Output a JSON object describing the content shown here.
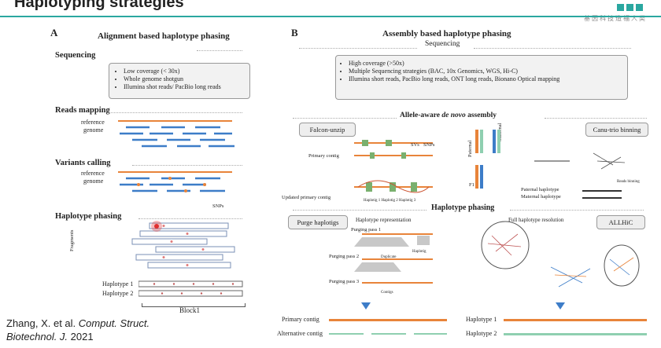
{
  "slide": {
    "title": "Haplotyping strategies",
    "logo_cn": "基因科技造福人类"
  },
  "panel_a": {
    "letter": "A",
    "title": "Alignment based haplotype phasing",
    "sequencing": {
      "label": "Sequencing",
      "bullets": [
        "Low coverage (< 30x)",
        "Whole genome shotgun",
        "Illumina shot reads/ PacBio long reads"
      ]
    },
    "reads_mapping": {
      "label": "Reads mapping",
      "reference": "reference",
      "genome": "genome"
    },
    "variants_calling": {
      "label": "Variants calling",
      "reference": "reference",
      "genome": "genome",
      "snps": "SNPs"
    },
    "haplotype_phasing": {
      "label": "Haplotype phasing",
      "fragments": "Fragments",
      "hap1": "Haplotype 1",
      "hap2": "Haplotype 2",
      "block": "Block1"
    }
  },
  "panel_b": {
    "letter": "B",
    "title": "Assembly based haplotype phasing",
    "sequencing": {
      "label": "Sequencing",
      "bullets": [
        "High coverage (>50x)",
        "Multiple Sequencing strategies (BAC, 10x Genomics, WGS, Hi-C)",
        "Illumina short reads, PacBio long reads, ONT long reads, Bionano Optical mapping"
      ]
    },
    "allele_aware": {
      "prefix": "Allele-aware ",
      "italic": "de novo",
      "suffix": " assembly"
    },
    "falcon": {
      "label": "Falcon-unzip",
      "primary_contig": "Primary contig",
      "svs": "SVs",
      "snps": "SNPs",
      "updated": "Updated primary contig",
      "hap_labels": "Haplotig 1 Haplotig 2 Haplotig 3"
    },
    "canu": {
      "label": "Canu-trio binning",
      "paternal": "Paternal",
      "maternal": "Maternal",
      "f1": "F1",
      "reads_binning": "Reads binning",
      "pat_hap": "Paternal haplotype",
      "mat_hap": "Maternal haplotype"
    },
    "haplotype_phasing": {
      "label": "Haplotype phasing"
    },
    "purge": {
      "label": "Purge haplotigs",
      "rep": "Haplotype representation",
      "pass1": "Purging pass 1",
      "pass2": "Purging pass 2",
      "pass3": "Purging pass 3",
      "haplotig": "Haplotig",
      "duplicate": "Duplicate",
      "contigs": "Contigs"
    },
    "allhic": {
      "label": "ALLHiC",
      "full": "Full haplotype resolution"
    },
    "bottom": {
      "primary": "Primary contig",
      "alternative": "Alternative contig",
      "hap1": "Haplotype 1",
      "hap2": "Haplotype 2"
    }
  },
  "citation": {
    "authors": "Zhang, X. et al. ",
    "journal1": "Comput. Struct.",
    "journal2": "Biotechnol. J.",
    "year": " 2021"
  },
  "colors": {
    "accent": "#2aa7a0",
    "orange": "#e8843a",
    "blue": "#3d7dc8",
    "green": "#8fcfb0"
  }
}
